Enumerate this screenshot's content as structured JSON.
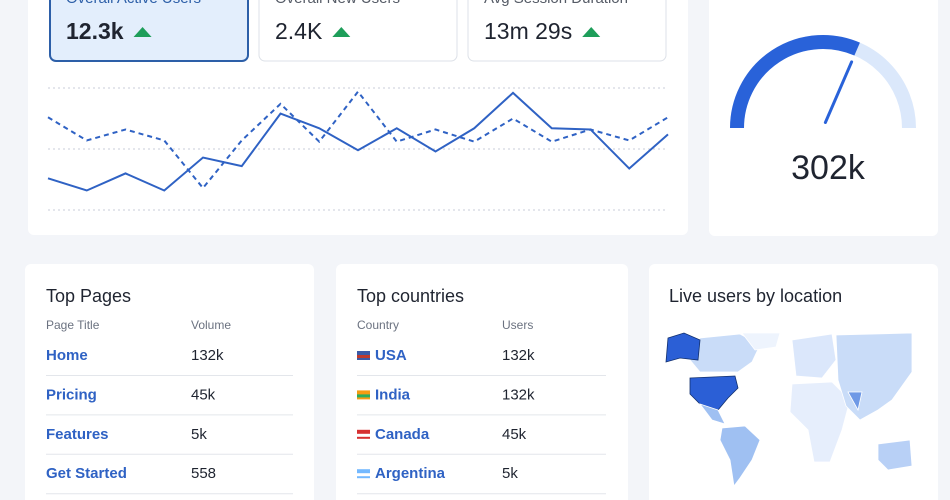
{
  "metrics": [
    {
      "label": "Overall Active Users",
      "value": "12.3k"
    },
    {
      "label": "Overall New Users",
      "value": "2.4K"
    },
    {
      "label": "Avg Session Duration",
      "value": "13m 29s"
    }
  ],
  "traffic_chart": {
    "type": "line",
    "ylim": [
      0,
      100
    ],
    "series": [
      {
        "color": "#2f62c4",
        "style": "solid",
        "values": [
          26,
          16,
          30,
          16,
          43,
          36,
          79,
          67,
          49,
          67,
          48,
          67,
          96,
          67,
          66,
          34,
          62
        ]
      },
      {
        "color": "#2f62c4",
        "style": "dashed",
        "values": [
          76,
          57,
          66,
          57,
          18,
          57,
          87,
          56,
          97,
          56,
          66,
          56,
          75,
          56,
          66,
          57,
          76
        ]
      }
    ]
  },
  "gauge": {
    "value": 63,
    "lim": [
      0,
      100
    ],
    "label": "302k",
    "color": "#2962d9",
    "track_color": "#dbe8fb"
  },
  "top_pages": {
    "title": "Top Pages",
    "columns": [
      "Page Title",
      "Volume"
    ],
    "rows": [
      [
        "Home",
        "132k"
      ],
      [
        "Pricing",
        "45k"
      ],
      [
        "Features",
        "5k"
      ],
      [
        "Get Started",
        "558"
      ]
    ]
  },
  "top_countries": {
    "title": "Top countries",
    "columns": [
      "Country",
      "Users"
    ],
    "rows": [
      [
        "USA",
        "132k"
      ],
      [
        "India",
        "132k"
      ],
      [
        "Canada",
        "45k"
      ],
      [
        "Argentina",
        "5k"
      ]
    ]
  },
  "live_map": {
    "title": "Live users by location"
  }
}
